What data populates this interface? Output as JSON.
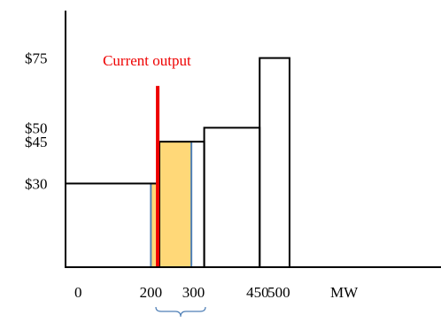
{
  "chart_data": {
    "type": "bar",
    "title": "",
    "x_unit": "MW",
    "xlim": [
      0,
      880
    ],
    "ylim": [
      0,
      92
    ],
    "y_ticks": [
      {
        "value": 30,
        "label": "$30"
      },
      {
        "value": 45,
        "label": "$45"
      },
      {
        "value": 50,
        "label": "$50"
      },
      {
        "value": 75,
        "label": "$75"
      }
    ],
    "x_ticks": [
      {
        "value": 0,
        "label": "0"
      },
      {
        "value": 200,
        "label": "200"
      },
      {
        "value": 300,
        "label": "300"
      },
      {
        "value": 450,
        "label": "450"
      },
      {
        "value": 500,
        "label": "500"
      }
    ],
    "steps": [
      {
        "x0": 0,
        "x1": 220,
        "price": 30
      },
      {
        "x0": 220,
        "x1": 325,
        "price": 45
      },
      {
        "x0": 325,
        "x1": 455,
        "price": 50
      },
      {
        "x0": 455,
        "x1": 525,
        "price": 75
      }
    ],
    "highlight_range": {
      "x0": 200,
      "x1": 295,
      "color": "#ffd878"
    },
    "current_output": {
      "x": 216,
      "price": 65,
      "label": "Current output",
      "color": "#ee0000"
    },
    "colors": {
      "axis": "#000000",
      "bracket": "#4f7fb6"
    }
  }
}
